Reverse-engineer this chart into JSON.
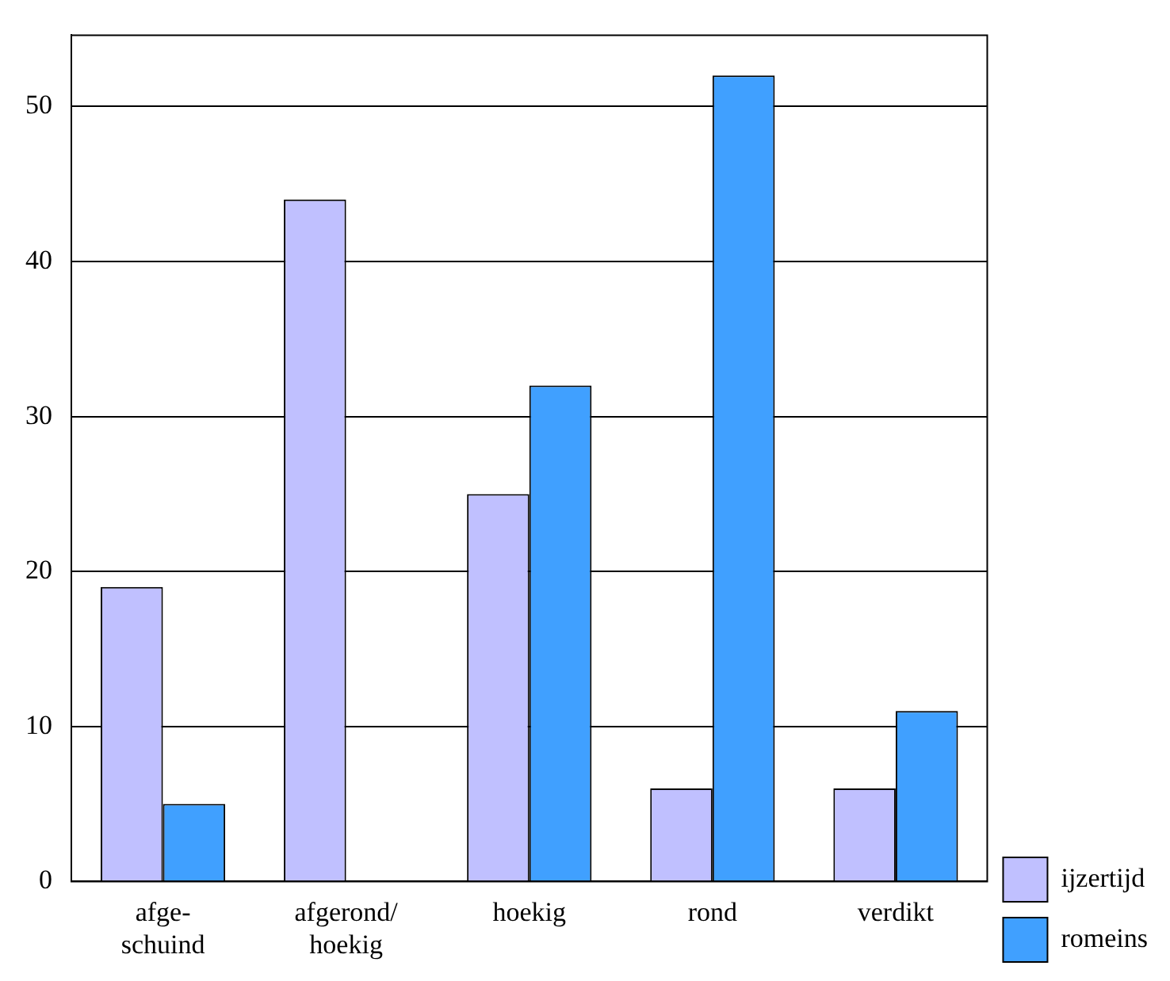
{
  "chart_data": {
    "type": "bar",
    "categories": [
      "afge-\nschuind",
      "afgerond/\nhoekig",
      "hoekig",
      "rond",
      "verdikt"
    ],
    "series": [
      {
        "name": "ijzertijd",
        "color": "#c0c0ff",
        "values": [
          19,
          44,
          25,
          6,
          6
        ]
      },
      {
        "name": "romeins",
        "color": "#40a0ff",
        "values": [
          5,
          0,
          32,
          52,
          11
        ]
      }
    ],
    "ylim": [
      0,
      54.6
    ],
    "yticks": [
      0,
      10,
      20,
      30,
      40,
      50
    ],
    "grid": "y",
    "legend": "bottom right"
  }
}
